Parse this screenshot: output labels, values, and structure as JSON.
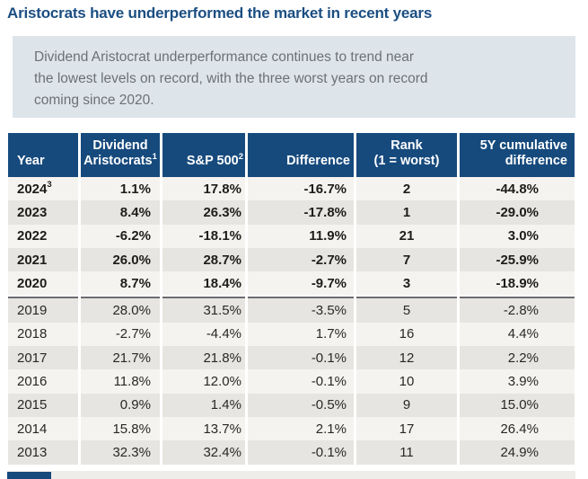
{
  "title": "Aristocrats have underperformed the market in recent years",
  "callout": {
    "lines": [
      "Dividend Aristocrat underperformance continues to trend near",
      "the lowest levels on record, with the three worst years on record",
      "coming since 2020."
    ]
  },
  "colors": {
    "navy": "#164a7d",
    "title_navy": "#1b4e82",
    "callout_bg": "#dde5eb",
    "callout_text": "#6c7073",
    "row_light": "#f4f3f0",
    "row_dark": "#e7e5e1",
    "separator_gray": "#6b6c70"
  },
  "table": {
    "head": {
      "year": "Year",
      "aristocrats_line1": "Dividend",
      "aristocrats_line2": "Aristocrats",
      "aristocrats_sup": "1",
      "sp500": "S&P 500",
      "sp500_sup": "2",
      "difference": "Difference",
      "rank_line1": "Rank",
      "rank_line2": "(1 = worst)",
      "cum_line1": "5Y cumulative",
      "cum_line2": "difference"
    },
    "rows": [
      {
        "year": "2024",
        "year_sup": "3",
        "aristocrats": "1.1%",
        "sp500": "17.8%",
        "difference": "-16.7%",
        "rank": "2",
        "cum": "-44.8%",
        "bold": true
      },
      {
        "year": "2023",
        "year_sup": "",
        "aristocrats": "8.4%",
        "sp500": "26.3%",
        "difference": "-17.8%",
        "rank": "1",
        "cum": "-29.0%",
        "bold": true
      },
      {
        "year": "2022",
        "year_sup": "",
        "aristocrats": "-6.2%",
        "sp500": "-18.1%",
        "difference": "11.9%",
        "rank": "21",
        "cum": "3.0%",
        "bold": true
      },
      {
        "year": "2021",
        "year_sup": "",
        "aristocrats": "26.0%",
        "sp500": "28.7%",
        "difference": "-2.7%",
        "rank": "7",
        "cum": "-25.9%",
        "bold": true
      },
      {
        "year": "2020",
        "year_sup": "",
        "aristocrats": "8.7%",
        "sp500": "18.4%",
        "difference": "-9.7%",
        "rank": "3",
        "cum": "-18.9%",
        "bold": true
      },
      {
        "year": "2019",
        "year_sup": "",
        "aristocrats": "28.0%",
        "sp500": "31.5%",
        "difference": "-3.5%",
        "rank": "5",
        "cum": "-2.8%",
        "bold": false
      },
      {
        "year": "2018",
        "year_sup": "",
        "aristocrats": "-2.7%",
        "sp500": "-4.4%",
        "difference": "1.7%",
        "rank": "16",
        "cum": "4.4%",
        "bold": false
      },
      {
        "year": "2017",
        "year_sup": "",
        "aristocrats": "21.7%",
        "sp500": "21.8%",
        "difference": "-0.1%",
        "rank": "12",
        "cum": "2.2%",
        "bold": false
      },
      {
        "year": "2016",
        "year_sup": "",
        "aristocrats": "11.8%",
        "sp500": "12.0%",
        "difference": "-0.1%",
        "rank": "10",
        "cum": "3.9%",
        "bold": false
      },
      {
        "year": "2015",
        "year_sup": "",
        "aristocrats": "0.9%",
        "sp500": "1.4%",
        "difference": "-0.5%",
        "rank": "9",
        "cum": "15.0%",
        "bold": false
      },
      {
        "year": "2014",
        "year_sup": "",
        "aristocrats": "15.8%",
        "sp500": "13.7%",
        "difference": "2.1%",
        "rank": "17",
        "cum": "26.4%",
        "bold": false
      },
      {
        "year": "2013",
        "year_sup": "",
        "aristocrats": "32.3%",
        "sp500": "32.4%",
        "difference": "-0.1%",
        "rank": "11",
        "cum": "24.9%",
        "bold": false
      }
    ],
    "separator_after_row_index": 4
  }
}
